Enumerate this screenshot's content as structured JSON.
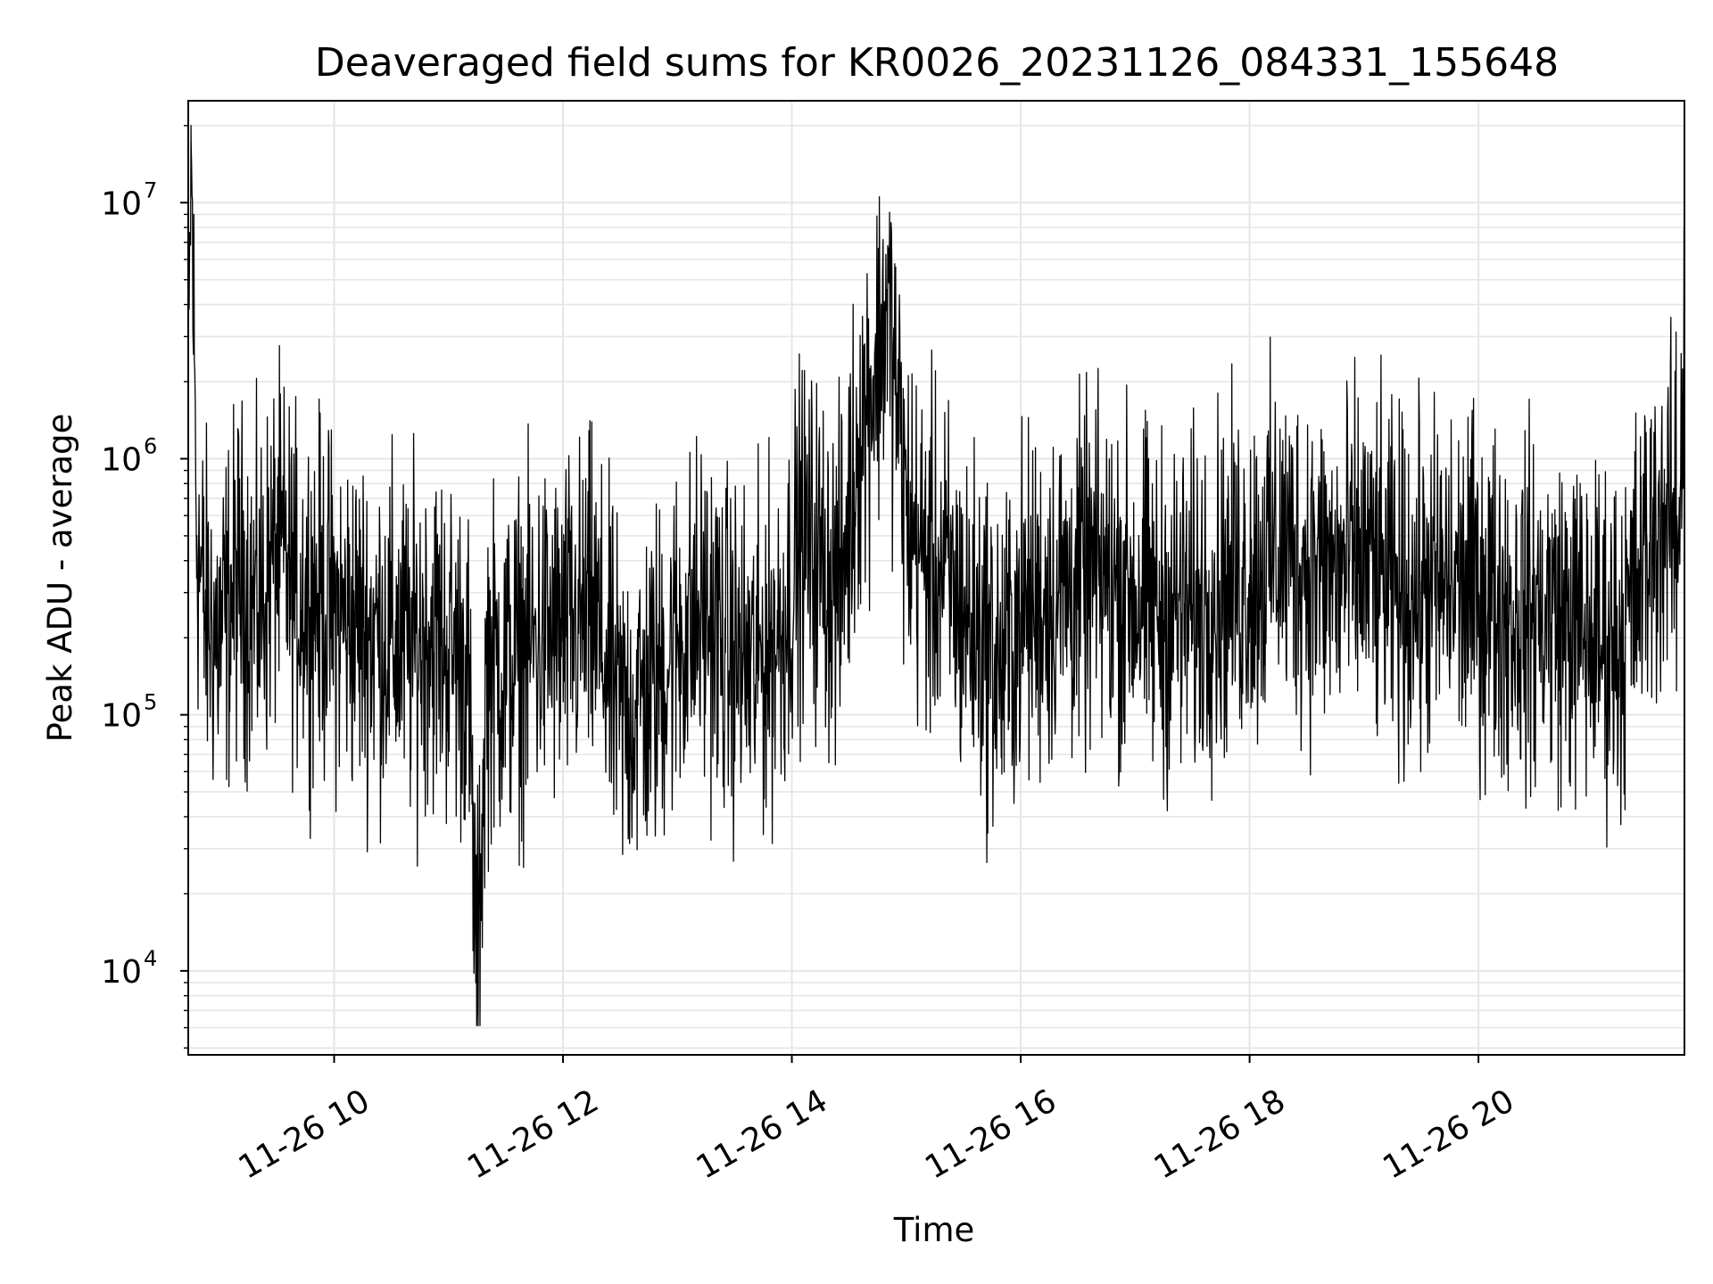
{
  "chart_data": {
    "type": "line",
    "title": "Deaveraged field sums for KR0026_20231126_084331_155648",
    "xlabel": "Time",
    "ylabel": "Peak ADU - average",
    "y_scale": "log",
    "ylim": [
      4700,
      25000000
    ],
    "xlim": [
      "2023-11-26 08:43:31",
      "2023-11-26 21:48:00"
    ],
    "grid": true,
    "line_color": "#000000",
    "grid_color": "#e6e6e6",
    "x_ticks": [
      {
        "t": "2023-11-26 10:00",
        "label": "11-26 10"
      },
      {
        "t": "2023-11-26 12:00",
        "label": "11-26 12"
      },
      {
        "t": "2023-11-26 14:00",
        "label": "11-26 14"
      },
      {
        "t": "2023-11-26 16:00",
        "label": "11-26 16"
      },
      {
        "t": "2023-11-26 18:00",
        "label": "11-26 18"
      },
      {
        "t": "2023-11-26 20:00",
        "label": "11-26 20"
      }
    ],
    "y_ticks": [
      {
        "value": 10000,
        "base": "10",
        "exp": "4"
      },
      {
        "value": 100000,
        "base": "10",
        "exp": "5"
      },
      {
        "value": 1000000,
        "base": "10",
        "exp": "6"
      },
      {
        "value": 10000000,
        "base": "10",
        "exp": "7"
      }
    ],
    "series": [
      {
        "x": [
          "2023-11-26 08:43:31",
          "2023-11-26 08:45",
          "2023-11-26 08:48",
          "2023-11-26 08:52",
          "2023-11-26 09:00",
          "2023-11-26 09:10",
          "2023-11-26 09:20",
          "2023-11-26 09:30",
          "2023-11-26 09:40",
          "2023-11-26 09:50",
          "2023-11-26 10:00",
          "2023-11-26 10:15",
          "2023-11-26 10:30",
          "2023-11-26 10:40",
          "2023-11-26 10:50",
          "2023-11-26 11:00",
          "2023-11-26 11:10",
          "2023-11-26 11:15",
          "2023-11-26 11:20",
          "2023-11-26 11:30",
          "2023-11-26 11:40",
          "2023-11-26 11:50",
          "2023-11-26 12:00",
          "2023-11-26 12:15",
          "2023-11-26 12:30",
          "2023-11-26 12:45",
          "2023-11-26 13:00",
          "2023-11-26 13:15",
          "2023-11-26 13:25",
          "2023-11-26 13:40",
          "2023-11-26 13:55",
          "2023-11-26 14:05",
          "2023-11-26 14:15",
          "2023-11-26 14:25",
          "2023-11-26 14:35",
          "2023-11-26 14:45",
          "2023-11-26 14:50",
          "2023-11-26 14:55",
          "2023-11-26 15:00",
          "2023-11-26 15:10",
          "2023-11-26 15:20",
          "2023-11-26 15:30",
          "2023-11-26 15:40",
          "2023-11-26 15:50",
          "2023-11-26 16:00",
          "2023-11-26 16:20",
          "2023-11-26 16:40",
          "2023-11-26 17:00",
          "2023-11-26 17:10",
          "2023-11-26 17:30",
          "2023-11-26 17:40",
          "2023-11-26 18:00",
          "2023-11-26 18:15",
          "2023-11-26 18:30",
          "2023-11-26 18:45",
          "2023-11-26 19:00",
          "2023-11-26 19:15",
          "2023-11-26 19:30",
          "2023-11-26 19:45",
          "2023-11-26 20:00",
          "2023-11-26 20:20",
          "2023-11-26 20:40",
          "2023-11-26 21:00",
          "2023-11-26 21:15",
          "2023-11-26 21:25",
          "2023-11-26 21:35",
          "2023-11-26 21:45",
          "2023-11-26 21:48"
        ],
        "y": [
          1000000,
          17000000,
          500000,
          250000,
          200000,
          350000,
          250000,
          450000,
          300000,
          300000,
          250000,
          220000,
          200000,
          180000,
          220000,
          180000,
          160000,
          8000,
          160000,
          150000,
          180000,
          200000,
          200000,
          250000,
          100000,
          120000,
          200000,
          250000,
          180000,
          150000,
          220000,
          500000,
          400000,
          300000,
          1200000,
          2500000,
          4000000,
          1800000,
          600000,
          400000,
          350000,
          250000,
          200000,
          150000,
          250000,
          300000,
          350000,
          300000,
          250000,
          250000,
          300000,
          350000,
          450000,
          400000,
          350000,
          400000,
          300000,
          300000,
          320000,
          300000,
          250000,
          250000,
          200000,
          200000,
          350000,
          600000,
          500000,
          3500000
        ]
      }
    ]
  }
}
